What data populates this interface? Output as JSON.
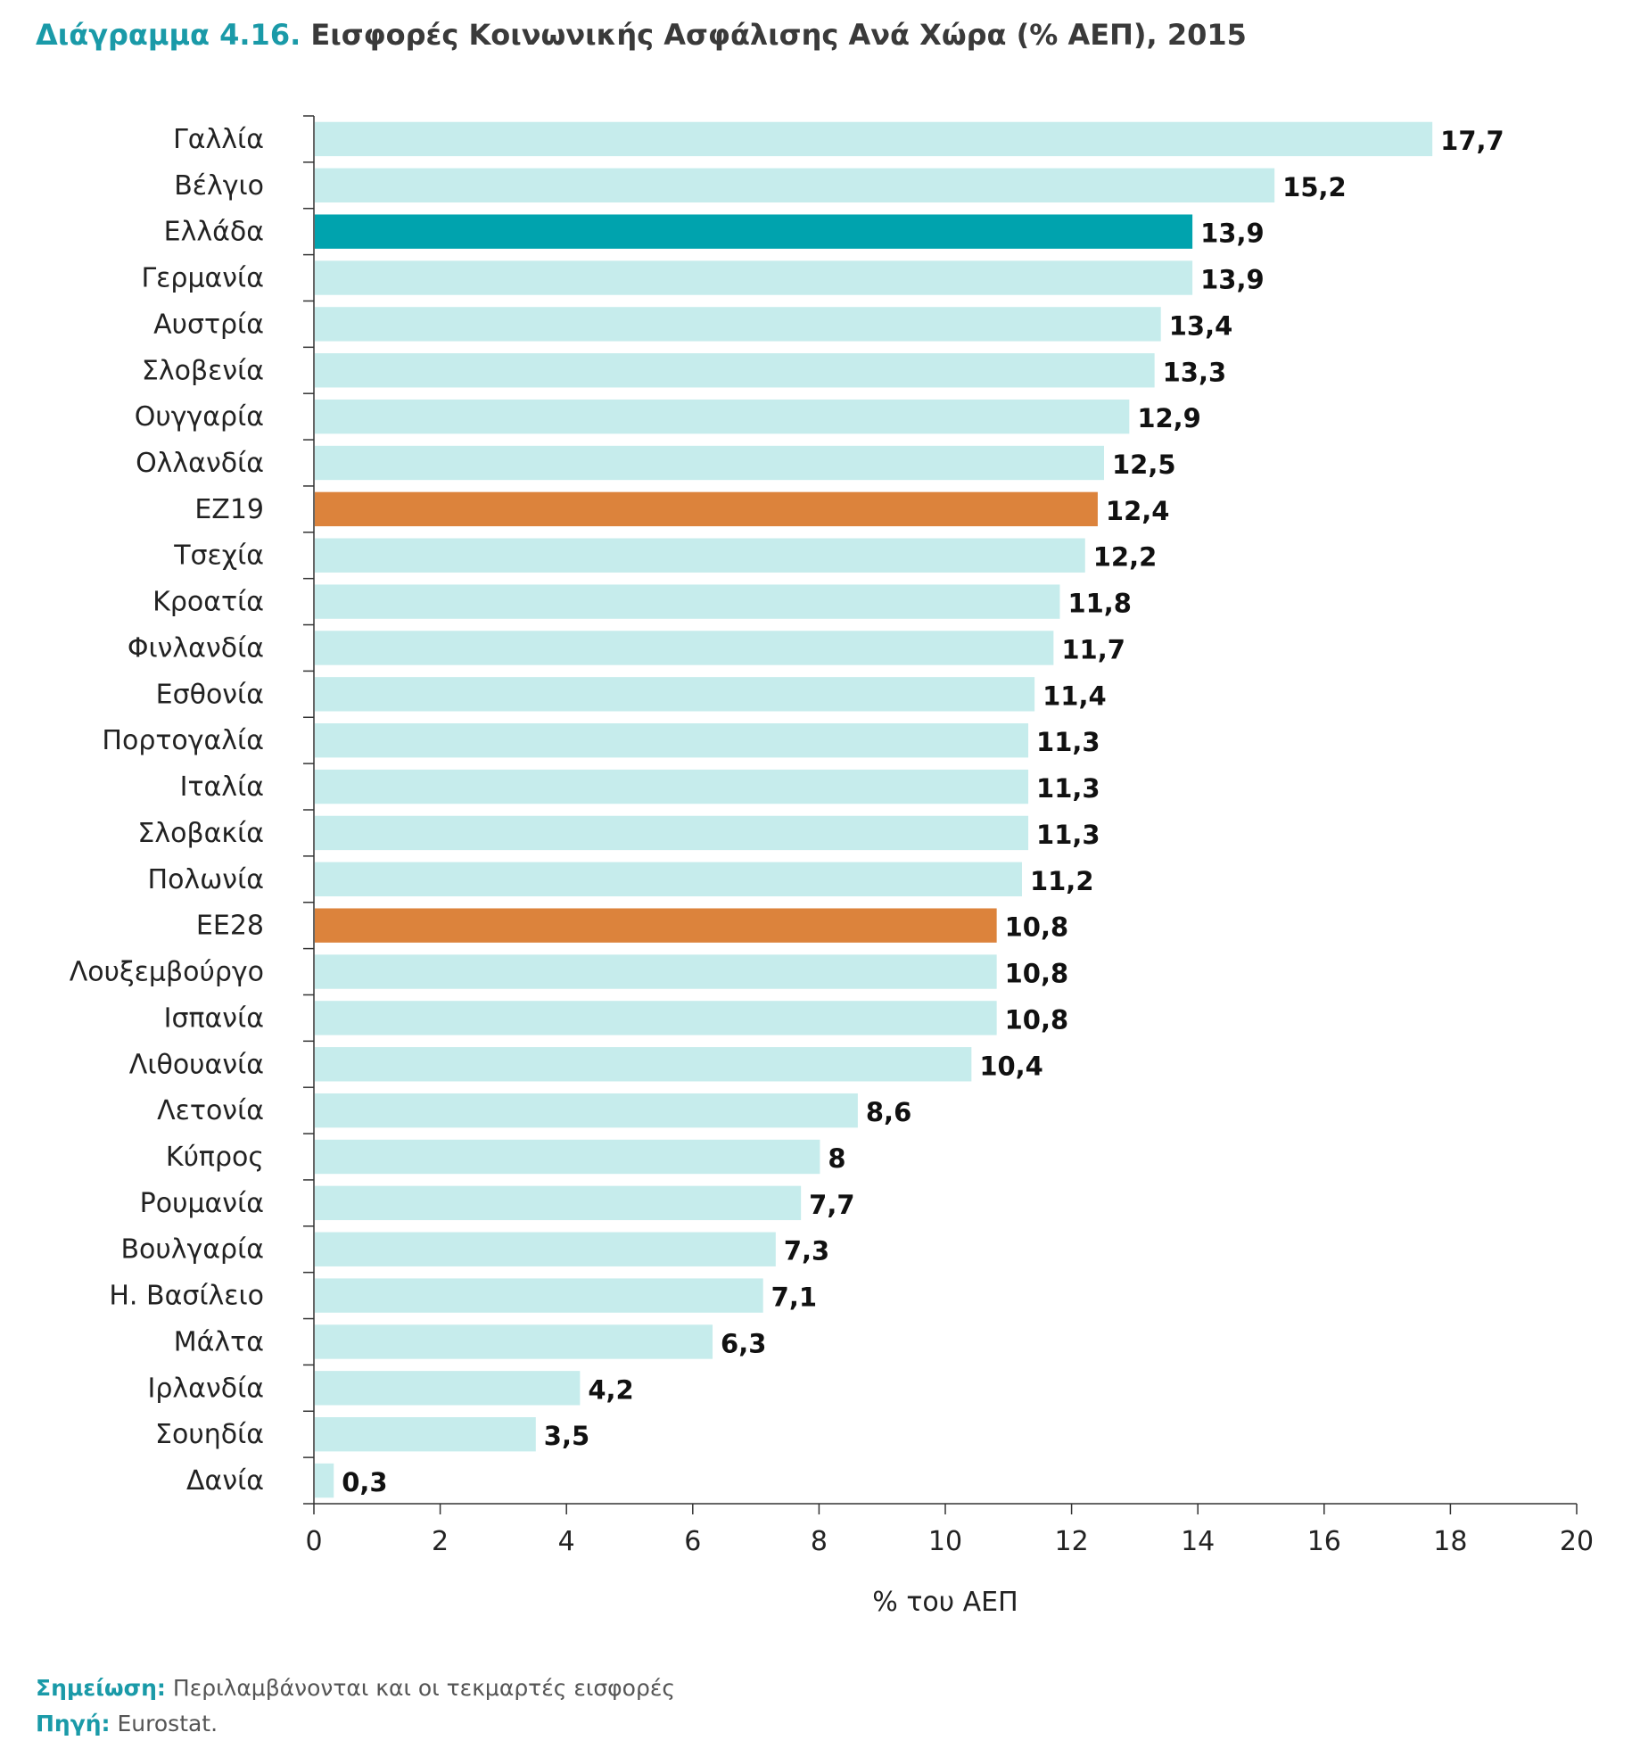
{
  "title": {
    "number": "Διάγραμμα 4.16.",
    "text": "Εισφορές Κοινωνικής Ασφάλισης Ανά Χώρα (% ΑΕΠ), 2015"
  },
  "note": {
    "label": "Σημείωση:",
    "text": "Περιλαμβάνονται και οι τεκμαρτές εισφορές"
  },
  "source": {
    "label": "Πηγή:",
    "text": "Eurostat."
  },
  "colors": {
    "default": "#c6ecec",
    "greece": "#00a3ae",
    "aggregate": "#dc833c",
    "axis": "#333333"
  },
  "chart_data": {
    "type": "bar",
    "orientation": "horizontal",
    "title": "Εισφορές Κοινωνικής Ασφάλισης Ανά Χώρα (% ΑΕΠ), 2015",
    "xlabel": "% του ΑΕΠ",
    "ylabel": "",
    "xlim": [
      0,
      20
    ],
    "xticks": [
      0,
      2,
      4,
      6,
      8,
      10,
      12,
      14,
      16,
      18,
      20
    ],
    "grid": false,
    "categories": [
      "Γαλλία",
      "Βέλγιο",
      "Ελλάδα",
      "Γερμανία",
      "Αυστρία",
      "Σλοβενία",
      "Ουγγαρία",
      "Ολλανδία",
      "ΕΖ19",
      "Τσεχία",
      "Κροατία",
      "Φινλανδία",
      "Εσθονία",
      "Πορτογαλία",
      "Ιταλία",
      "Σλοβακία",
      "Πολωνία",
      "ΕΕ28",
      "Λουξεμβούργο",
      "Ισπανία",
      "Λιθουανία",
      "Λετονία",
      "Κύπρος",
      "Ρουμανία",
      "Βουλγαρία",
      "Η. Βασίλειο",
      "Μάλτα",
      "Ιρλανδία",
      "Σουηδία",
      "Δανία"
    ],
    "values": [
      17.7,
      15.2,
      13.9,
      13.9,
      13.4,
      13.3,
      12.9,
      12.5,
      12.4,
      12.2,
      11.8,
      11.7,
      11.4,
      11.3,
      11.3,
      11.3,
      11.2,
      10.8,
      10.8,
      10.8,
      10.4,
      8.6,
      8,
      7.7,
      7.3,
      7.1,
      6.3,
      4.2,
      3.5,
      0.3
    ],
    "value_labels": [
      "17,7",
      "15,2",
      "13,9",
      "13,9",
      "13,4",
      "13,3",
      "12,9",
      "12,5",
      "12,4",
      "12,2",
      "11,8",
      "11,7",
      "11,4",
      "11,3",
      "11,3",
      "11,3",
      "11,2",
      "10,8",
      "10,8",
      "10,8",
      "10,4",
      "8,6",
      "8",
      "7,7",
      "7,3",
      "7,1",
      "6,3",
      "4,2",
      "3,5",
      "0,3"
    ],
    "highlight": {
      "Ελλάδα": "greece",
      "ΕΖ19": "aggregate",
      "ΕΕ28": "aggregate"
    }
  }
}
